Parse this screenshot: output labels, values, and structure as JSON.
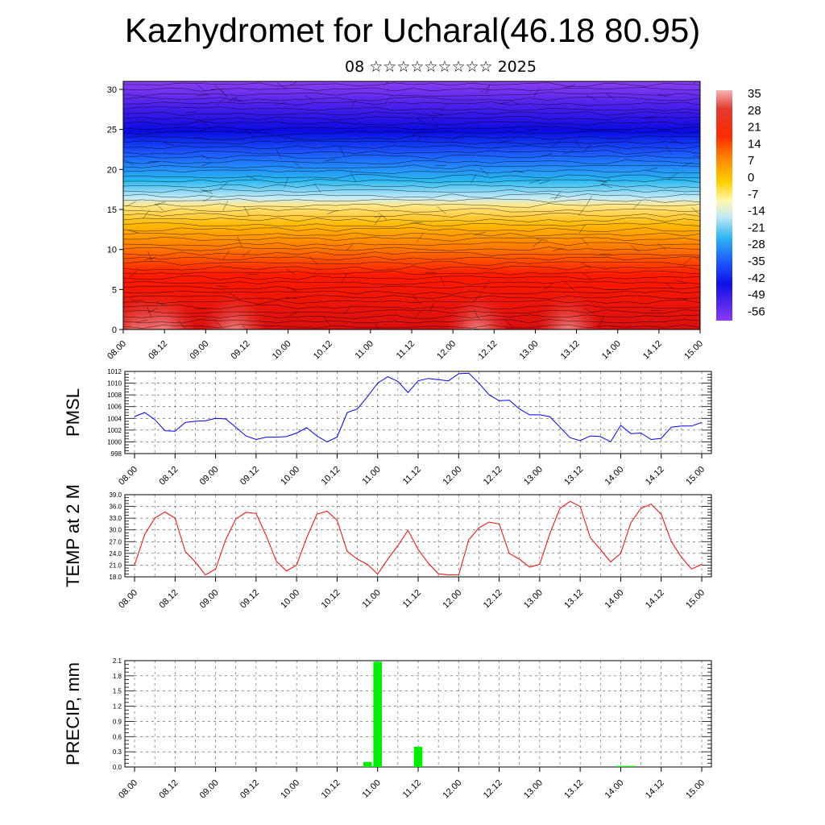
{
  "title": "Kazhydromet for Ucharal(46.18 80.95)",
  "subtitle": "08 ☆☆☆☆☆☆☆☆☆ 2025",
  "time_labels": [
    "08.00",
    "08.12",
    "09.00",
    "09.12",
    "10.00",
    "10.12",
    "11.00",
    "11.12",
    "12.00",
    "12.12",
    "13.00",
    "13.12",
    "14.00",
    "14.12",
    "15.00"
  ],
  "colorbar_labels": [
    "35",
    "28",
    "21",
    "14",
    "7",
    "0",
    "-7",
    "-14",
    "-21",
    "-28",
    "-35",
    "-42",
    "-49",
    "-56"
  ],
  "chart_data": [
    {
      "type": "heatmap",
      "title": "",
      "xlabel": "",
      "ylabel": "",
      "x": [
        "08.00",
        "08.12",
        "09.00",
        "09.12",
        "10.00",
        "10.12",
        "11.00",
        "11.12",
        "12.00",
        "12.12",
        "13.00",
        "13.12",
        "14.00",
        "14.12",
        "15.00"
      ],
      "y_ticks": [
        "0",
        "5",
        "10",
        "15",
        "20",
        "25",
        "30"
      ],
      "ylim": [
        0,
        31
      ],
      "colorbar": [
        "35",
        "28",
        "21",
        "14",
        "7",
        "0",
        "-7",
        "-14",
        "-21",
        "-28",
        "-35",
        "-42",
        "-49",
        "-56"
      ],
      "overlay": "wind streamlines / barbs"
    },
    {
      "type": "line",
      "ylabel": "PMSL",
      "y_ticks": [
        "998",
        "1000",
        "1002",
        "1004",
        "1006",
        "1008",
        "1010",
        "1012"
      ],
      "ylim": [
        998,
        1012
      ],
      "color": "#0000ff",
      "x": [
        0,
        3,
        6,
        9,
        12,
        15,
        18,
        21,
        24,
        27,
        30,
        33,
        36,
        39,
        42,
        45,
        48,
        51,
        54,
        57,
        60,
        63,
        66,
        69,
        72,
        75,
        78,
        81,
        84,
        87,
        90,
        93,
        96,
        99,
        102,
        105,
        108,
        111,
        114,
        117,
        120,
        123,
        126,
        129,
        132,
        135,
        138,
        141,
        144,
        147,
        150,
        153,
        156,
        159,
        162,
        165,
        168
      ],
      "values": [
        1004.3,
        1005.0,
        1003.8,
        1001.9,
        1001.8,
        1003.3,
        1003.5,
        1003.6,
        1004.0,
        1003.9,
        1002.5,
        1001.0,
        1000.4,
        1000.8,
        1000.8,
        1000.9,
        1001.5,
        1002.4,
        1001.0,
        1000.0,
        1000.8,
        1005.0,
        1005.6,
        1007.7,
        1010.0,
        1011.1,
        1010.3,
        1008.4,
        1010.4,
        1010.8,
        1010.6,
        1010.4,
        1011.6,
        1011.7,
        1010.0,
        1008.0,
        1007.0,
        1007.1,
        1005.6,
        1004.6,
        1004.6,
        1004.3,
        1002.5,
        1000.7,
        1000.2,
        1001.0,
        1000.9,
        1000.0,
        1002.8,
        1001.4,
        1001.5,
        1000.4,
        1000.6,
        1002.5,
        1002.7,
        1002.7,
        1003.3
      ]
    },
    {
      "type": "line",
      "ylabel": "TEMP at 2 M",
      "y_ticks": [
        "18.0",
        "21.0",
        "24.0",
        "27.0",
        "30.0",
        "33.0",
        "36.0",
        "39.0"
      ],
      "ylim": [
        18,
        39
      ],
      "color": "#ff0000",
      "x": [
        0,
        3,
        6,
        9,
        12,
        15,
        18,
        21,
        24,
        27,
        30,
        33,
        36,
        39,
        42,
        45,
        48,
        51,
        54,
        57,
        60,
        63,
        66,
        69,
        72,
        75,
        78,
        81,
        84,
        87,
        90,
        93,
        96,
        99,
        102,
        105,
        108,
        111,
        114,
        117,
        120,
        123,
        126,
        129,
        132,
        135,
        138,
        141,
        144,
        147,
        150,
        153,
        156,
        159,
        162,
        165,
        168
      ],
      "values": [
        21.0,
        28.8,
        33.0,
        34.6,
        33.0,
        24.5,
        21.8,
        18.5,
        20.0,
        27.5,
        32.8,
        34.5,
        34.2,
        28.5,
        22.0,
        19.5,
        21.0,
        28.0,
        34.0,
        34.8,
        32.5,
        24.5,
        22.5,
        21.2,
        18.7,
        22.5,
        26.0,
        29.9,
        25.0,
        21.5,
        18.8,
        18.5,
        18.5,
        27.5,
        30.5,
        32.0,
        31.5,
        24.0,
        22.5,
        20.5,
        21.2,
        29.0,
        35.5,
        37.3,
        36.0,
        28.0,
        25.0,
        21.8,
        24.0,
        31.8,
        35.5,
        36.6,
        34.0,
        27.0,
        23.0,
        20.0,
        21.2
      ]
    },
    {
      "type": "bar",
      "ylabel": "PRECIP, mm",
      "y_ticks": [
        "0.0",
        "0.3",
        "0.6",
        "0.9",
        "1.2",
        "1.5",
        "1.8",
        "2.1"
      ],
      "ylim": [
        0,
        2.1
      ],
      "color": "#00ee00",
      "x_hours": [
        69,
        72,
        84,
        144,
        147
      ],
      "values": [
        0.1,
        2.08,
        0.4,
        0.02,
        0.02
      ]
    }
  ]
}
